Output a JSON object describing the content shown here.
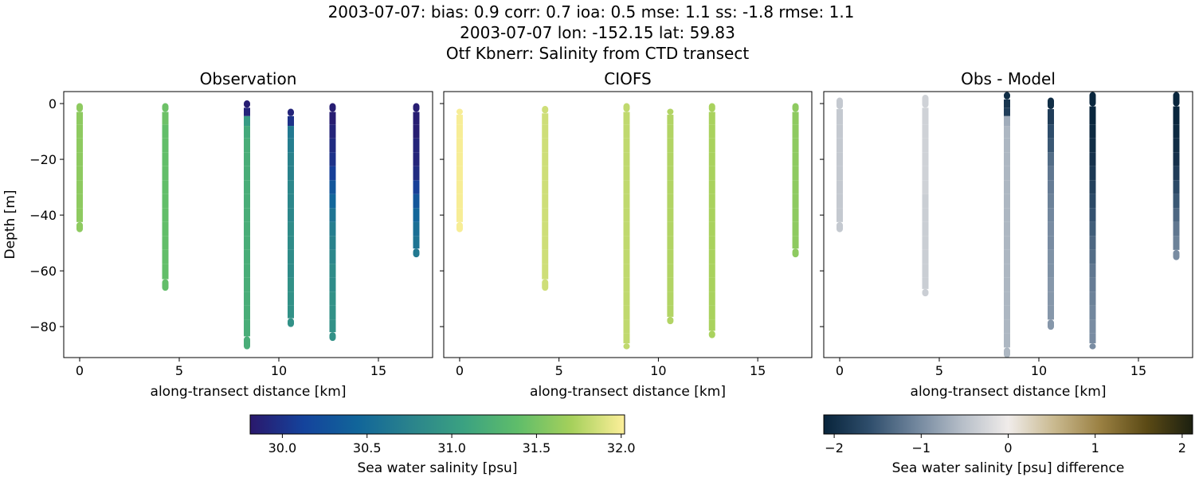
{
  "suptitle": [
    "2003-07-07: bias: 0.9  corr: 0.7  ioa: 0.5  mse: 1.1  ss: -1.8  rmse: 1.1",
    "2003-07-07 lon: -152.15 lat: 59.83",
    "Otf Kbnerr: Salinity from CTD transect"
  ],
  "colorbars": [
    {
      "label": "Sea water salinity [psu]",
      "clim": [
        29.81,
        32.02
      ],
      "ticks": [
        {
          "value": 30,
          "label": "30.0"
        },
        30.5,
        {
          "value": 31,
          "label": "31.0"
        },
        31.5,
        {
          "value": 32,
          "label": "32.0"
        }
      ],
      "colors": [
        "#2a186c",
        "#14439c",
        "#11659a",
        "#2a838c",
        "#3ba281",
        "#5fbd6a",
        "#a5d05b",
        "#fdef9a"
      ]
    },
    {
      "label": "Sea water salinity [psu] difference",
      "clim": [
        -2.12,
        2.12
      ],
      "ticks": [
        {
          "value": -2,
          "label": "−2"
        },
        {
          "value": -1,
          "label": "−1"
        },
        0,
        1,
        2
      ],
      "colors": [
        "#08243b",
        "#2f4e6c",
        "#71869d",
        "#b6bec8",
        "#f0ecea",
        "#c9b98f",
        "#9a8042",
        "#5b4a15",
        "#1c2010"
      ]
    }
  ],
  "chart_data": [
    {
      "type": "scatter",
      "title": "Observation",
      "xlabel": "along-transect distance [km]",
      "ylabel": "Depth [m]",
      "xlim": [
        -0.8,
        17.72
      ],
      "ylim": [
        -91.1,
        4.3
      ],
      "xticks": [
        0,
        5,
        10,
        15
      ],
      "yticks": [
        {
          "value": -80,
          "label": "−80"
        },
        {
          "value": -60,
          "label": "−60"
        },
        {
          "value": -40,
          "label": "−40"
        },
        {
          "value": -20,
          "label": "−20"
        },
        0
      ],
      "ytick_labels": true,
      "colorbar": 0,
      "series": [
        {
          "x": 0,
          "depths": [
            -1,
            -5,
            -10,
            -15,
            -20,
            -25,
            -30,
            -35,
            -40,
            -45
          ],
          "values": [
            31.6,
            31.6,
            31.6,
            31.6,
            31.6,
            31.6,
            31.6,
            31.6,
            31.6,
            31.6
          ]
        },
        {
          "x": 4.3,
          "depths": [
            -1,
            -5,
            -10,
            -15,
            -20,
            -25,
            -30,
            -35,
            -40,
            -45,
            -50,
            -55,
            -60,
            -66
          ],
          "values": [
            31.45,
            31.45,
            31.4,
            31.4,
            31.4,
            31.4,
            31.4,
            31.4,
            31.4,
            31.4,
            31.4,
            31.4,
            31.4,
            31.4
          ]
        },
        {
          "x": 8.4,
          "depths": [
            0,
            -3,
            -6,
            -10,
            -15,
            -20,
            -25,
            -30,
            -35,
            -40,
            -45,
            -50,
            -55,
            -60,
            -65,
            -70,
            -75,
            -80,
            -87
          ],
          "values": [
            29.85,
            29.9,
            31.0,
            31.15,
            31.2,
            31.2,
            31.2,
            31.2,
            31.2,
            31.2,
            31.2,
            31.2,
            31.2,
            31.2,
            31.2,
            31.2,
            31.2,
            31.2,
            31.2
          ]
        },
        {
          "x": 10.6,
          "depths": [
            -3,
            -6,
            -10,
            -15,
            -20,
            -25,
            -30,
            -35,
            -40,
            -45,
            -50,
            -55,
            -60,
            -65,
            -70,
            -75,
            -79
          ],
          "values": [
            29.9,
            30.0,
            30.65,
            30.7,
            30.75,
            30.75,
            30.8,
            30.8,
            30.8,
            30.85,
            30.85,
            30.85,
            30.85,
            30.9,
            30.9,
            30.9,
            30.9
          ]
        },
        {
          "x": 12.7,
          "depths": [
            -1,
            -5,
            -10,
            -15,
            -20,
            -25,
            -30,
            -35,
            -40,
            -45,
            -50,
            -55,
            -60,
            -65,
            -70,
            -75,
            -80,
            -84
          ],
          "values": [
            29.85,
            29.85,
            29.9,
            29.95,
            30.0,
            30.1,
            30.3,
            30.45,
            30.6,
            30.7,
            30.75,
            30.8,
            30.85,
            30.85,
            30.9,
            30.9,
            30.9,
            30.9
          ]
        },
        {
          "x": 16.9,
          "depths": [
            -1,
            -5,
            -10,
            -15,
            -20,
            -25,
            -30,
            -35,
            -40,
            -45,
            -50,
            -54
          ],
          "values": [
            29.85,
            29.85,
            29.85,
            29.9,
            29.9,
            29.95,
            30.1,
            30.3,
            30.45,
            30.55,
            30.6,
            30.65
          ]
        }
      ]
    },
    {
      "type": "scatter",
      "title": "CIOFS",
      "xlabel": "along-transect distance [km]",
      "xlim": [
        -0.8,
        17.72
      ],
      "ylim": [
        -91.1,
        4.3
      ],
      "xticks": [
        0,
        5,
        10,
        15
      ],
      "yticks": [
        -80,
        -60,
        -40,
        -20,
        0
      ],
      "ytick_labels": false,
      "colorbar": 0,
      "series": [
        {
          "x": 0,
          "depths": [
            -3,
            -5,
            -10,
            -15,
            -20,
            -25,
            -30,
            -35,
            -40,
            -45
          ],
          "values": [
            32.0,
            32.0,
            32.0,
            32.0,
            32.0,
            32.0,
            32.0,
            32.0,
            32.0,
            32.0
          ]
        },
        {
          "x": 4.3,
          "depths": [
            -2,
            -5,
            -10,
            -15,
            -20,
            -25,
            -30,
            -35,
            -40,
            -45,
            -50,
            -55,
            -60,
            -66
          ],
          "values": [
            31.85,
            31.85,
            31.85,
            31.85,
            31.85,
            31.85,
            31.85,
            31.85,
            31.85,
            31.85,
            31.85,
            31.85,
            31.85,
            31.85
          ]
        },
        {
          "x": 8.4,
          "depths": [
            -1,
            -5,
            -10,
            -15,
            -20,
            -25,
            -30,
            -35,
            -40,
            -45,
            -50,
            -55,
            -60,
            -65,
            -70,
            -75,
            -80,
            -85,
            -87
          ],
          "values": [
            31.8,
            31.8,
            31.8,
            31.8,
            31.8,
            31.8,
            31.8,
            31.8,
            31.8,
            31.8,
            31.8,
            31.8,
            31.8,
            31.8,
            31.8,
            31.8,
            31.8,
            31.8,
            31.8
          ]
        },
        {
          "x": 10.6,
          "depths": [
            -3,
            -5,
            -10,
            -15,
            -20,
            -25,
            -30,
            -35,
            -40,
            -45,
            -50,
            -55,
            -60,
            -65,
            -70,
            -75,
            -78
          ],
          "values": [
            31.75,
            31.75,
            31.75,
            31.75,
            31.75,
            31.75,
            31.75,
            31.75,
            31.75,
            31.75,
            31.75,
            31.75,
            31.75,
            31.75,
            31.75,
            31.75,
            31.75
          ]
        },
        {
          "x": 12.7,
          "depths": [
            -1,
            -5,
            -10,
            -15,
            -20,
            -25,
            -30,
            -35,
            -40,
            -45,
            -50,
            -55,
            -60,
            -65,
            -70,
            -75,
            -80,
            -83
          ],
          "values": [
            31.72,
            31.72,
            31.72,
            31.72,
            31.72,
            31.72,
            31.72,
            31.72,
            31.72,
            31.72,
            31.72,
            31.72,
            31.72,
            31.72,
            31.72,
            31.72,
            31.72,
            31.72
          ]
        },
        {
          "x": 16.9,
          "depths": [
            -1,
            -5,
            -10,
            -15,
            -20,
            -25,
            -30,
            -35,
            -40,
            -45,
            -50,
            -54
          ],
          "values": [
            31.6,
            31.6,
            31.6,
            31.6,
            31.6,
            31.6,
            31.6,
            31.6,
            31.6,
            31.6,
            31.6,
            31.6
          ]
        }
      ]
    },
    {
      "type": "scatter",
      "title": "Obs - Model",
      "xlabel": "along-transect distance [km]",
      "xlim": [
        -0.8,
        17.72
      ],
      "ylim": [
        -91.1,
        4.3
      ],
      "xticks": [
        0,
        5,
        10,
        15
      ],
      "yticks": [
        -80,
        -60,
        -40,
        -20,
        0
      ],
      "ytick_labels": false,
      "colorbar": 1,
      "series": [
        {
          "x": 0,
          "depths": [
            1,
            -5,
            -10,
            -15,
            -20,
            -25,
            -30,
            -35,
            -40,
            -45
          ],
          "values": [
            -0.4,
            -0.4,
            -0.4,
            -0.4,
            -0.4,
            -0.4,
            -0.4,
            -0.4,
            -0.4,
            -0.4
          ]
        },
        {
          "x": 4.3,
          "depths": [
            2,
            -5,
            -10,
            -15,
            -20,
            -25,
            -30,
            -35,
            -40,
            -45,
            -50,
            -55,
            -60,
            -65,
            -68
          ],
          "values": [
            -0.3,
            -0.3,
            -0.3,
            -0.3,
            -0.3,
            -0.3,
            -0.3,
            -0.35,
            -0.35,
            -0.35,
            -0.35,
            -0.35,
            -0.35,
            -0.35,
            -0.35
          ]
        },
        {
          "x": 8.4,
          "depths": [
            3,
            0,
            -3,
            -6,
            -10,
            -15,
            -20,
            -25,
            -30,
            -35,
            -40,
            -45,
            -50,
            -55,
            -60,
            -65,
            -70,
            -75,
            -80,
            -85,
            -90
          ],
          "values": [
            -2.0,
            -1.9,
            -1.8,
            -0.7,
            -0.6,
            -0.6,
            -0.6,
            -0.6,
            -0.6,
            -0.6,
            -0.6,
            -0.6,
            -0.6,
            -0.6,
            -0.6,
            -0.6,
            -0.6,
            -0.6,
            -0.6,
            -0.6,
            -0.6
          ]
        },
        {
          "x": 10.6,
          "depths": [
            1,
            -5,
            -10,
            -15,
            -20,
            -25,
            -30,
            -35,
            -40,
            -45,
            -50,
            -55,
            -60,
            -65,
            -70,
            -75,
            -80
          ],
          "values": [
            -2.0,
            -1.8,
            -1.6,
            -1.5,
            -1.3,
            -1.2,
            -1.15,
            -1.1,
            -1.05,
            -1.0,
            -1.0,
            -0.95,
            -0.95,
            -0.9,
            -0.9,
            -0.9,
            -0.9
          ]
        },
        {
          "x": 12.7,
          "depths": [
            3,
            -5,
            -10,
            -15,
            -20,
            -25,
            -30,
            -35,
            -40,
            -45,
            -50,
            -55,
            -60,
            -65,
            -70,
            -75,
            -80,
            -85,
            -87
          ],
          "values": [
            -2.1,
            -2.1,
            -2.05,
            -2.0,
            -1.95,
            -1.85,
            -1.75,
            -1.65,
            -1.55,
            -1.45,
            -1.35,
            -1.3,
            -1.2,
            -1.15,
            -1.1,
            -1.05,
            -1.0,
            -1.0,
            -1.0
          ]
        },
        {
          "x": 16.9,
          "depths": [
            3,
            -5,
            -10,
            -15,
            -20,
            -25,
            -30,
            -35,
            -40,
            -45,
            -50,
            -55
          ],
          "values": [
            -2.1,
            -2.1,
            -2.05,
            -2.0,
            -1.95,
            -1.8,
            -1.65,
            -1.5,
            -1.35,
            -1.2,
            -1.1,
            -1.0
          ]
        }
      ]
    }
  ]
}
